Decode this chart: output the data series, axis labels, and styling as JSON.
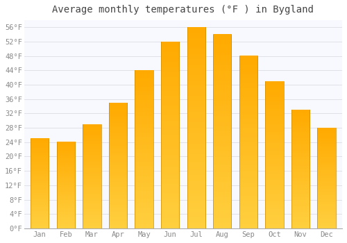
{
  "title": "Average monthly temperatures (°F ) in Bygland",
  "months": [
    "Jan",
    "Feb",
    "Mar",
    "Apr",
    "May",
    "Jun",
    "Jul",
    "Aug",
    "Sep",
    "Oct",
    "Nov",
    "Dec"
  ],
  "values": [
    25,
    24,
    29,
    35,
    44,
    52,
    56,
    54,
    48,
    41,
    33,
    28
  ],
  "bar_color_top": "#FFAA00",
  "bar_color_bottom": "#FFD040",
  "ylim": [
    0,
    58
  ],
  "yticks": [
    0,
    4,
    8,
    12,
    16,
    20,
    24,
    28,
    32,
    36,
    40,
    44,
    48,
    52,
    56
  ],
  "background_color": "#FFFFFF",
  "plot_bg_color": "#F8F8FF",
  "grid_color": "#E0E0E8",
  "title_fontsize": 10,
  "tick_fontsize": 7.5
}
